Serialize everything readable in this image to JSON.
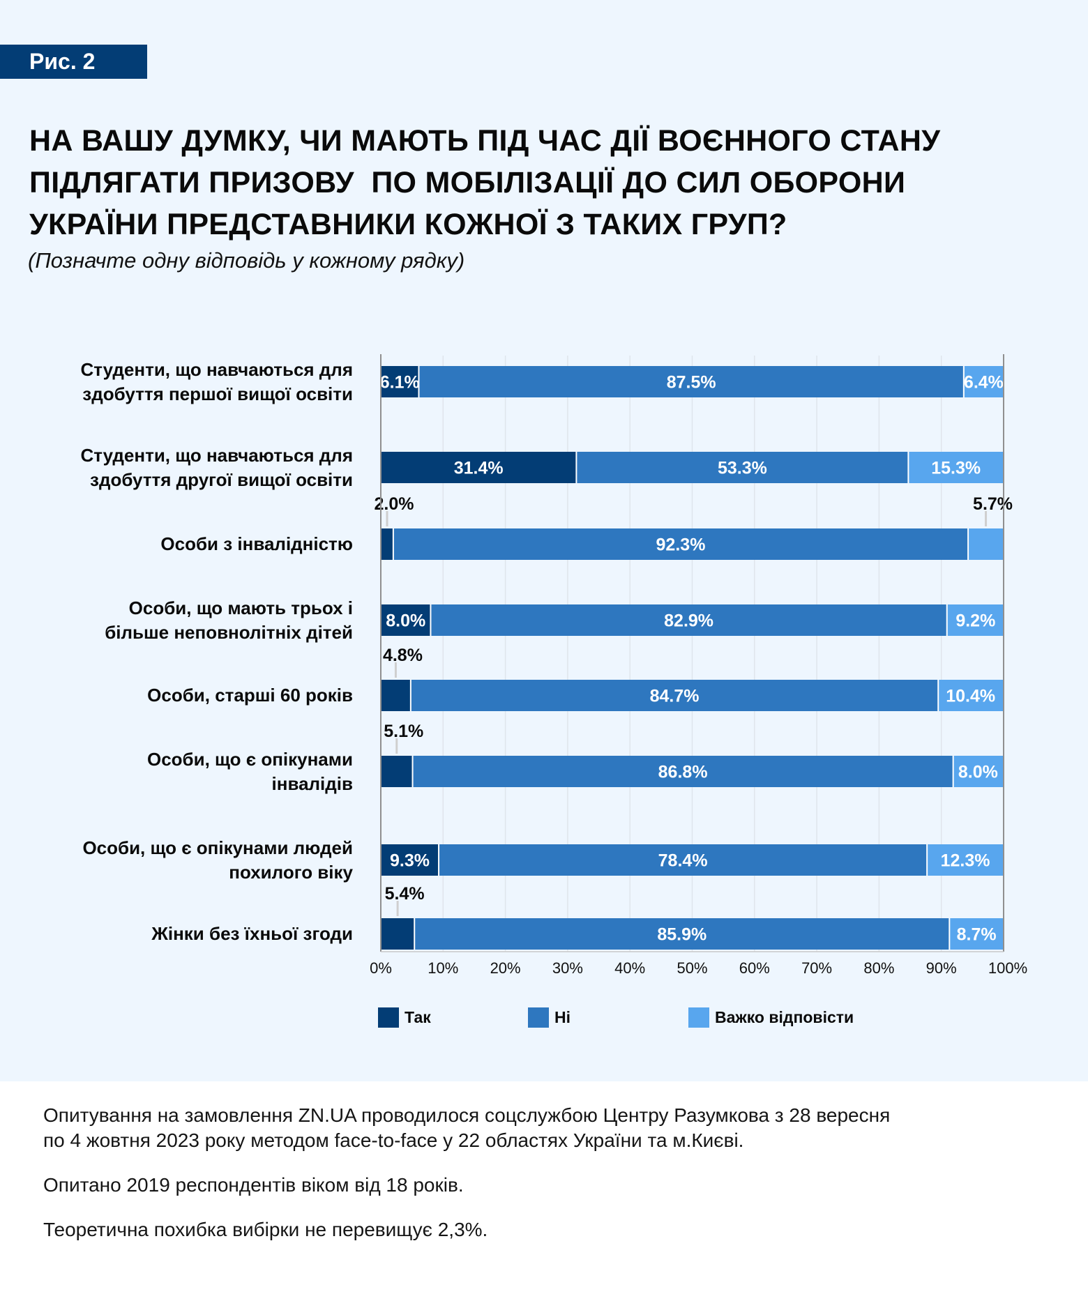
{
  "figure": {
    "badge": "Рис. 2",
    "title_lines": [
      "НА ВАШУ ДУМКУ, ЧИ МАЮТЬ ПІД ЧАС ДІЇ ВОЄННОГО СТАНУ",
      "ПІДЛЯГАТИ ПРИЗОВУ  ПО МОБІЛІЗАЦІЇ ДО СИЛ ОБОРОНИ",
      "УКРАЇНИ ПРЕДСТАВНИКИ КОЖНОЇ З ТАКИХ ГРУП?"
    ],
    "subtitle": "(Позначте одну відповідь у кожному рядку)"
  },
  "colors": {
    "background": "#eef6fe",
    "badge": "#033d75",
    "yes": "#033d75",
    "no": "#2e77bf",
    "hard": "#58a6ee",
    "axis": "#8f8f8f",
    "grid": "#dfe5ec"
  },
  "chart_data": {
    "type": "bar",
    "orientation": "horizontal",
    "stacked": true,
    "normalized": true,
    "title": "НА ВАШУ ДУМКУ, ЧИ МАЮТЬ ПІД ЧАС ДІЇ ВОЄННОГО СТАНУ ПІДЛЯГАТИ ПРИЗОВУ  ПО МОБІЛІЗАЦІЇ ДО СИЛ ОБОРОНИ УКРАЇНИ ПРЕДСТАВНИКИ КОЖНОЇ З ТАКИХ ГРУП?",
    "subtitle": "(Позначте одну відповідь у кожному рядку)",
    "xlabel": "",
    "ylabel": "",
    "xlim": [
      0,
      100
    ],
    "grid": true,
    "legend_position": "bottom",
    "x_ticks": [
      "0%",
      "10%",
      "20%",
      "30%",
      "40%",
      "50%",
      "60%",
      "70%",
      "80%",
      "90%",
      "100%"
    ],
    "categories": [
      [
        "Студенти, що навчаються для",
        "здобуття першої вищої освіти"
      ],
      [
        "Студенти, що навчаються для",
        "здобуття другої вищої освіти"
      ],
      [
        "Особи з інвалідністю"
      ],
      [
        "Особи, що мають трьох і",
        "більше неповнолітніх дітей"
      ],
      [
        "Особи, старші 60 років"
      ],
      [
        "Особи, що є опікунами",
        "інвалідів"
      ],
      [
        "Особи, що є опікунами людей",
        "похилого віку"
      ],
      [
        "Жінки без їхньої згоди"
      ]
    ],
    "series": [
      {
        "name": "Так",
        "color_key": "yes",
        "values": [
          6.1,
          31.4,
          2.0,
          8.0,
          4.8,
          5.1,
          9.3,
          5.4
        ],
        "labels": [
          "6.1%",
          "31.4%",
          "2.0%",
          "8.0%",
          "4.8%",
          "5.1%",
          "9.3%",
          "5.4%"
        ],
        "label_placement": [
          "inside",
          "inside",
          "above",
          "inside",
          "above",
          "above",
          "inside",
          "above"
        ]
      },
      {
        "name": "Ні",
        "color_key": "no",
        "values": [
          87.5,
          53.3,
          92.3,
          82.9,
          84.7,
          86.8,
          78.4,
          85.9
        ],
        "labels": [
          "87.5%",
          "53.3%",
          "92.3%",
          "82.9%",
          "84.7%",
          "86.8%",
          "78.4%",
          "85.9%"
        ],
        "label_placement": [
          "inside",
          "inside",
          "inside",
          "inside",
          "inside",
          "inside",
          "inside",
          "inside"
        ]
      },
      {
        "name": "Важко відповісти",
        "color_key": "hard",
        "values": [
          6.4,
          15.3,
          5.7,
          9.2,
          10.4,
          8.0,
          12.3,
          8.7
        ],
        "labels": [
          "6.4%",
          "15.3%",
          "5.7%",
          "9.2%",
          "10.4%",
          "8.0%",
          "12.3%",
          "8.7%"
        ],
        "label_placement": [
          "inside",
          "inside",
          "above",
          "inside",
          "inside",
          "inside",
          "inside",
          "inside"
        ]
      }
    ]
  },
  "legend": [
    {
      "label": "Так",
      "color_key": "yes"
    },
    {
      "label": "Ні",
      "color_key": "no"
    },
    {
      "label": "Важко відповісти",
      "color_key": "hard"
    }
  ],
  "footer": {
    "lines": [
      "Опитування на замовлення ZN.UA проводилося соцслужбою Центру Разумкова з 28 вересня",
      "по 4 жовтня 2023 року методом face-to-face у 22 областях України та м.Києві.",
      "Опитано 2019 респондентів віком від 18 років.",
      "Теоретична похибка вибірки не перевищує 2,3%."
    ]
  }
}
